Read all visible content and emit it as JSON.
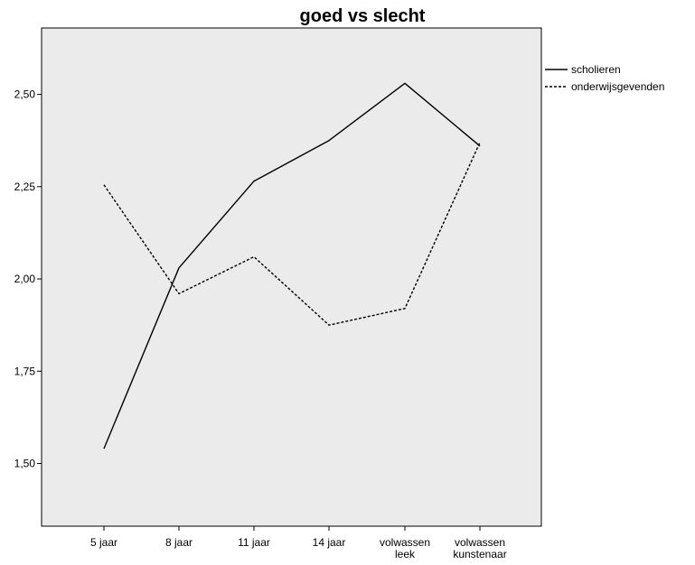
{
  "chart_data": {
    "type": "line",
    "title": "goed vs slecht",
    "xlabel": "",
    "ylabel": "",
    "categories": [
      [
        "5 jaar"
      ],
      [
        "8 jaar"
      ],
      [
        "11 jaar"
      ],
      [
        "14 jaar"
      ],
      [
        "volwassen",
        "leek"
      ],
      [
        "volwassen",
        "kunstenaar"
      ]
    ],
    "ylim": [
      1.33,
      2.68
    ],
    "yticks": [
      1.5,
      1.75,
      2.0,
      2.25,
      2.5
    ],
    "ytick_labels": [
      "1,50",
      "1,75",
      "2,00",
      "2,25",
      "2,50"
    ],
    "grid": false,
    "legend_position": "right-top",
    "series": [
      {
        "name": "scholieren",
        "style": "solid",
        "values": [
          1.54,
          2.03,
          2.265,
          2.375,
          2.53,
          2.36
        ]
      },
      {
        "name": "onderwijsgevenden",
        "style": "dashed",
        "values": [
          2.255,
          1.96,
          2.06,
          1.875,
          1.92,
          2.37
        ]
      }
    ],
    "colors": {
      "plot_background": "#ebebeb",
      "line": "#000000",
      "frame": "#000000"
    }
  }
}
